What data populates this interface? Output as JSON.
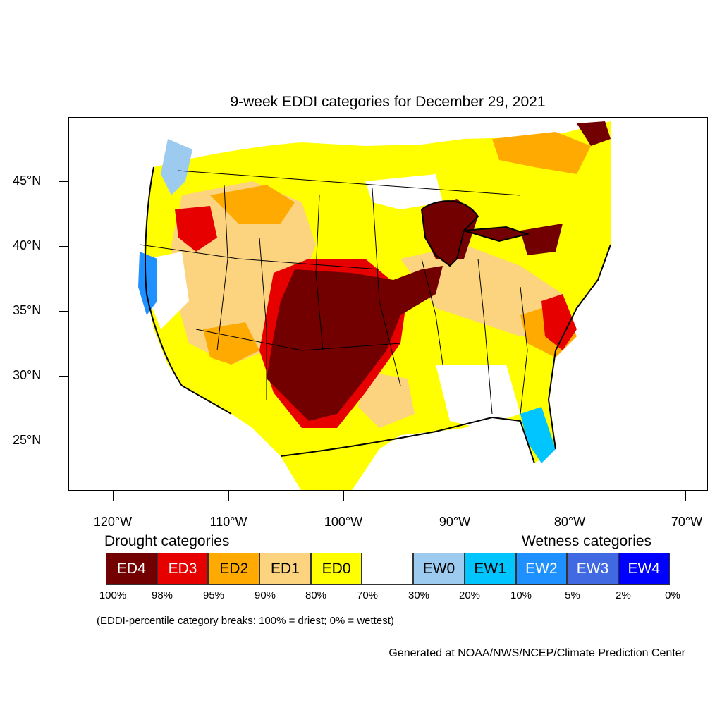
{
  "title": "9-week EDDI categories for December 29, 2021",
  "lat_labels": [
    "45°N",
    "40°N",
    "35°N",
    "30°N",
    "25°N"
  ],
  "lon_labels": [
    "120°W",
    "110°W",
    "100°W",
    "90°W",
    "80°W",
    "70°W"
  ],
  "legend": {
    "drought_heading": "Drought categories",
    "wetness_heading": "Wetness categories",
    "categories": [
      {
        "label": "ED4",
        "color": "#730000"
      },
      {
        "label": "ED3",
        "color": "#e60000"
      },
      {
        "label": "ED2",
        "color": "#ffaa00"
      },
      {
        "label": "ED1",
        "color": "#fcd37f"
      },
      {
        "label": "ED0",
        "color": "#ffff00"
      },
      {
        "label": "",
        "color": "#ffffff"
      },
      {
        "label": "EW0",
        "color": "#9dcbf0"
      },
      {
        "label": "EW1",
        "color": "#00c5ff"
      },
      {
        "label": "EW2",
        "color": "#1e90ff"
      },
      {
        "label": "EW3",
        "color": "#4169e1"
      },
      {
        "label": "EW4",
        "color": "#0000ff"
      }
    ],
    "breaks": [
      "100%",
      "98%",
      "95%",
      "90%",
      "80%",
      "70%",
      "30%",
      "20%",
      "10%",
      "5%",
      "2%",
      "0%"
    ]
  },
  "note": "(EDDI-percentile category breaks: 100% = driest; 0% = wettest)",
  "credit": "Generated at NOAA/NWS/NCEP/Climate Prediction Center"
}
